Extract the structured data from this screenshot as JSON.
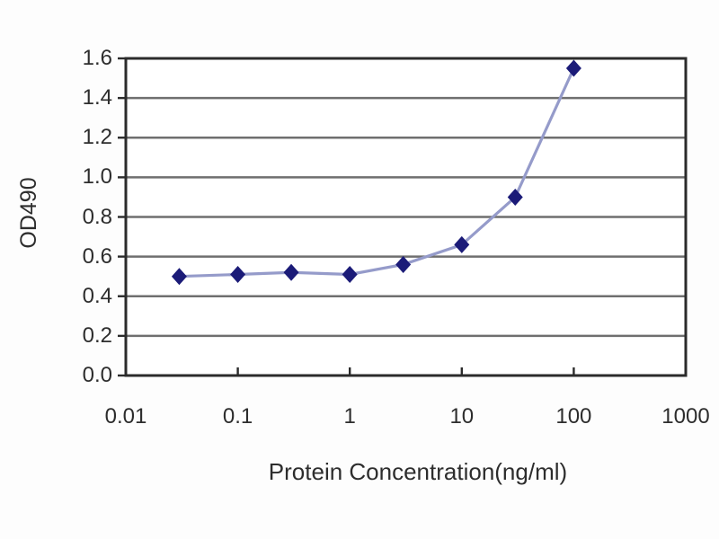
{
  "chart_data": {
    "type": "line",
    "title": "",
    "xlabel": "Protein Concentration(ng/ml)",
    "ylabel": "OD490",
    "x_scale": "log",
    "xlim": [
      0.01,
      1000
    ],
    "ylim": [
      0.0,
      1.6
    ],
    "x_ticks": [
      0.01,
      0.1,
      1,
      10,
      100,
      1000
    ],
    "x_tick_labels": [
      "0.01",
      "0.1",
      "1",
      "10",
      "100",
      "1000"
    ],
    "y_ticks": [
      0.0,
      0.2,
      0.4,
      0.6,
      0.8,
      1.0,
      1.2,
      1.4,
      1.6
    ],
    "y_tick_labels": [
      "0.0",
      "0.2",
      "0.4",
      "0.6",
      "0.8",
      "1.0",
      "1.2",
      "1.4",
      "1.6"
    ],
    "grid": "horizontal-only",
    "legend": "none",
    "series": [
      {
        "name": "OD490",
        "marker": "diamond",
        "x": [
          0.03,
          0.1,
          0.3,
          1,
          3,
          10,
          30,
          100
        ],
        "y": [
          0.5,
          0.51,
          0.52,
          0.51,
          0.56,
          0.66,
          0.9,
          1.55
        ]
      }
    ]
  },
  "colors": {
    "plot_background": "#ffffff",
    "plot_border": "#2b2b2b",
    "gridline": "#6f6f6f",
    "tick_mark": "#2b2b2b",
    "series_line": "#959bca",
    "marker_fill": "#1b1b78",
    "text": "#2d2d2d"
  }
}
